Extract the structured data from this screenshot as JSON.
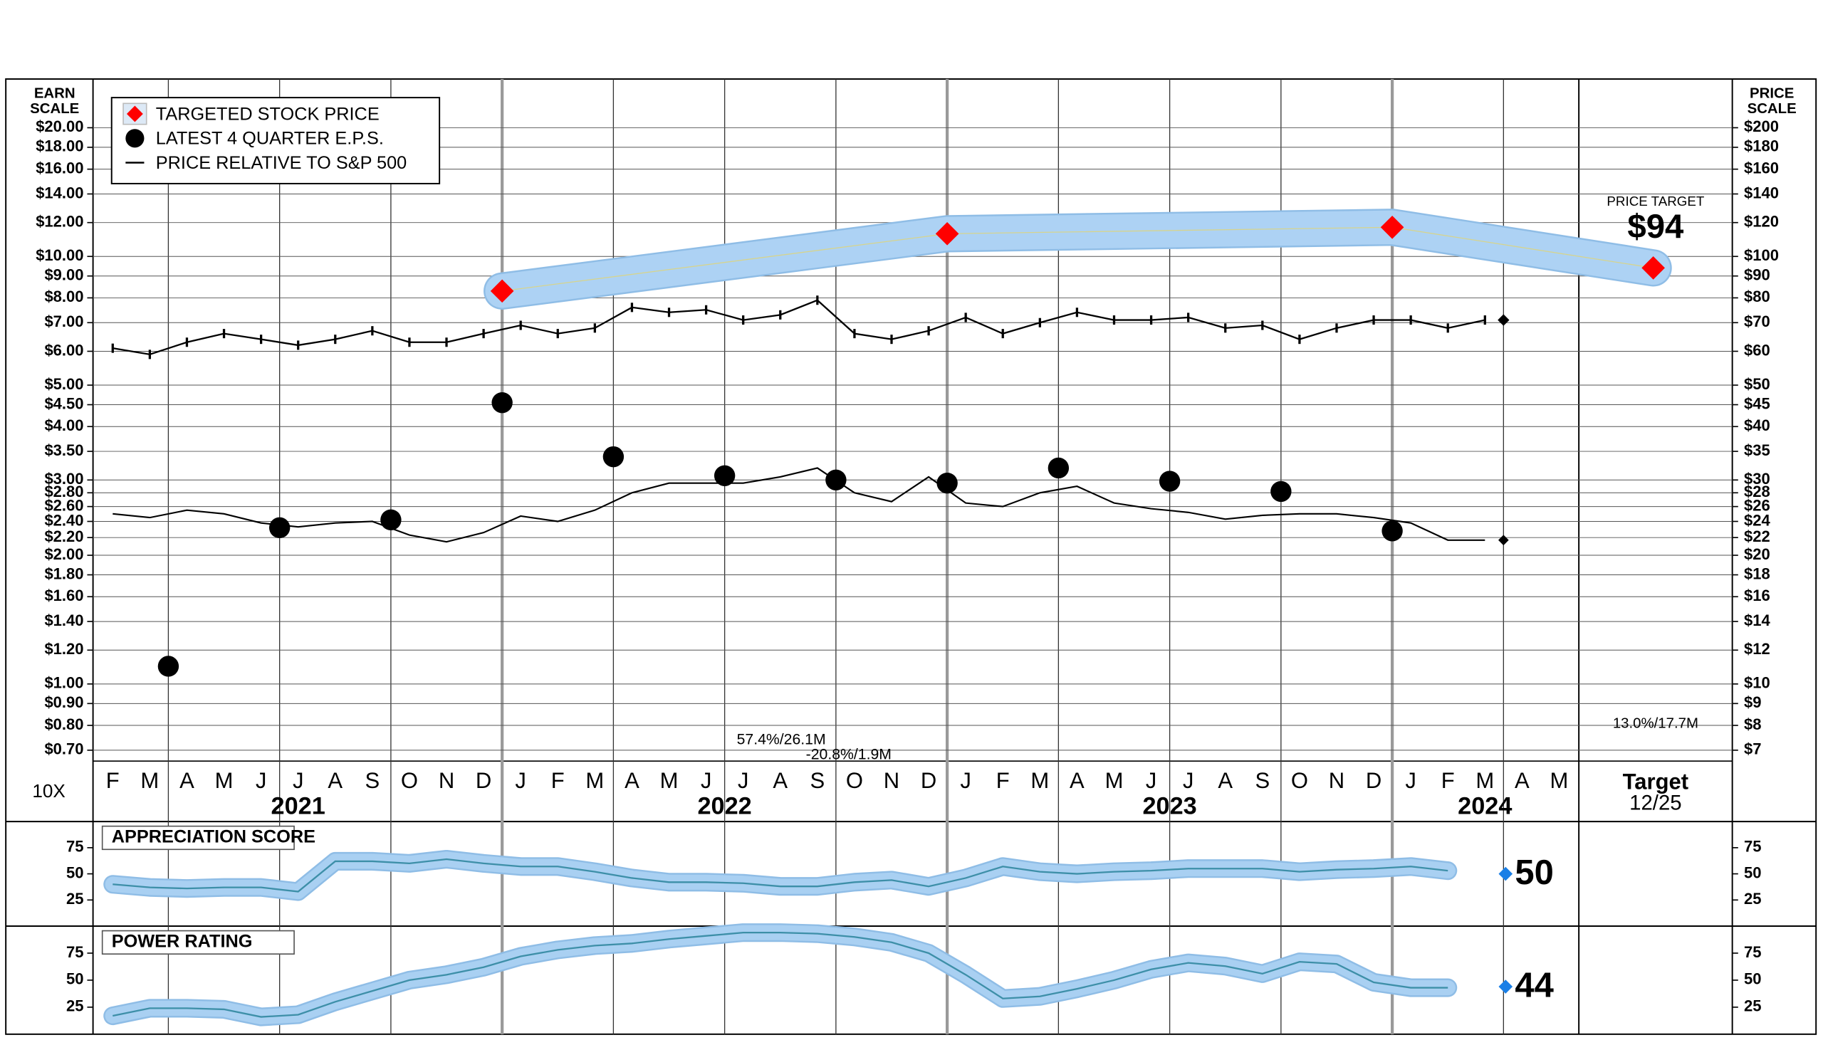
{
  "chart_data": [
    {
      "type": "line",
      "y_label": [
        "EARN",
        "SCALE"
      ],
      "y2_label": [
        "PRICE",
        "SCALE"
      ],
      "log_scale": true,
      "grid": true,
      "legend_position": "upper left",
      "x_note": "10X",
      "categories": [
        "F",
        "M",
        "A",
        "M",
        "J",
        "J",
        "A",
        "S",
        "O",
        "N",
        "D",
        "J",
        "F",
        "M",
        "A",
        "M",
        "J",
        "J",
        "A",
        "S",
        "O",
        "N",
        "D",
        "J",
        "F",
        "M",
        "A",
        "M",
        "J",
        "J",
        "A",
        "S",
        "O",
        "N",
        "D",
        "J",
        "F",
        "M",
        "A",
        "M"
      ],
      "years": [
        "2021",
        "2022",
        "2023",
        "2024"
      ],
      "ylim": [
        0.66,
        26
      ],
      "yticks": [
        {
          "value": 20,
          "label": "$20.00"
        },
        {
          "value": 18,
          "label": "$18.00"
        },
        {
          "value": 16,
          "label": "$16.00"
        },
        {
          "value": 14,
          "label": "$14.00"
        },
        {
          "value": 12,
          "label": "$12.00"
        },
        {
          "value": 10,
          "label": "$10.00"
        },
        {
          "value": 9,
          "label": "$9.00"
        },
        {
          "value": 8,
          "label": "$8.00"
        },
        {
          "value": 7,
          "label": "$7.00"
        },
        {
          "value": 6,
          "label": "$6.00"
        },
        {
          "value": 5,
          "label": "$5.00"
        },
        {
          "value": 4.5,
          "label": "$4.50"
        },
        {
          "value": 4,
          "label": "$4.00"
        },
        {
          "value": 3.5,
          "label": "$3.50"
        },
        {
          "value": 3,
          "label": "$3.00"
        },
        {
          "value": 2.8,
          "label": "$2.80"
        },
        {
          "value": 2.6,
          "label": "$2.60"
        },
        {
          "value": 2.4,
          "label": "$2.40"
        },
        {
          "value": 2.2,
          "label": "$2.20"
        },
        {
          "value": 2,
          "label": "$2.00"
        },
        {
          "value": 1.8,
          "label": "$1.80"
        },
        {
          "value": 1.6,
          "label": "$1.60"
        },
        {
          "value": 1.4,
          "label": "$1.40"
        },
        {
          "value": 1.2,
          "label": "$1.20"
        },
        {
          "value": 1,
          "label": "$1.00"
        },
        {
          "value": 0.9,
          "label": "$0.90"
        },
        {
          "value": 0.8,
          "label": "$0.80"
        },
        {
          "value": 0.7,
          "label": "$0.70"
        }
      ],
      "y2lim": [
        6.6,
        260
      ],
      "y2ticks": [
        {
          "value": 200,
          "label": "$200"
        },
        {
          "value": 180,
          "label": "$180"
        },
        {
          "value": 160,
          "label": "$160"
        },
        {
          "value": 140,
          "label": "$140"
        },
        {
          "value": 120,
          "label": "$120"
        },
        {
          "value": 100,
          "label": "$100"
        },
        {
          "value": 90,
          "label": "$90"
        },
        {
          "value": 80,
          "label": "$80"
        },
        {
          "value": 70,
          "label": "$70"
        },
        {
          "value": 60,
          "label": "$60"
        },
        {
          "value": 50,
          "label": "$50"
        },
        {
          "value": 45,
          "label": "$45"
        },
        {
          "value": 40,
          "label": "$40"
        },
        {
          "value": 35,
          "label": "$35"
        },
        {
          "value": 30,
          "label": "$30"
        },
        {
          "value": 28,
          "label": "$28"
        },
        {
          "value": 26,
          "label": "$26"
        },
        {
          "value": 24,
          "label": "$24"
        },
        {
          "value": 22,
          "label": "$22"
        },
        {
          "value": 20,
          "label": "$20"
        },
        {
          "value": 18,
          "label": "$18"
        },
        {
          "value": 16,
          "label": "$16"
        },
        {
          "value": 14,
          "label": "$14"
        },
        {
          "value": 12,
          "label": "$12"
        },
        {
          "value": 10,
          "label": "$10"
        },
        {
          "value": 9,
          "label": "$9"
        },
        {
          "value": 8,
          "label": "$8"
        },
        {
          "value": 7,
          "label": "$7"
        }
      ],
      "series": [
        {
          "name": "TARGETED STOCK PRICE",
          "marker": "diamond",
          "color": "#ff0000",
          "band_color": "#add2f4",
          "axis": "y2",
          "values": [
            null,
            null,
            null,
            null,
            null,
            null,
            null,
            null,
            null,
            null,
            83,
            null,
            null,
            null,
            null,
            null,
            null,
            null,
            null,
            null,
            null,
            null,
            113,
            null,
            null,
            null,
            null,
            null,
            null,
            null,
            null,
            null,
            null,
            null,
            117,
            null,
            null,
            null,
            null,
            null
          ]
        },
        {
          "name": "LATEST 4 QUARTER E.P.S.",
          "marker": "circle",
          "color": "#000000",
          "values": [
            null,
            1.1,
            null,
            null,
            2.32,
            null,
            null,
            2.42,
            null,
            null,
            4.55,
            null,
            null,
            3.4,
            null,
            null,
            3.07,
            null,
            null,
            3.0,
            null,
            null,
            2.95,
            null,
            null,
            3.2,
            null,
            null,
            2.98,
            null,
            null,
            2.82,
            null,
            null,
            2.28,
            null,
            null,
            null,
            null,
            null
          ]
        },
        {
          "name": "PRICE RELATIVE TO S&P 500",
          "marker": "line",
          "color": "#000000",
          "axis": "y2",
          "values": [
            25,
            24.5,
            25.5,
            25,
            23.8,
            23.3,
            23.8,
            24,
            22.3,
            21.5,
            22.6,
            24.7,
            24,
            25.5,
            28,
            29.5,
            29.5,
            29.5,
            30.5,
            32,
            28,
            26.7,
            30.5,
            26.5,
            26,
            28,
            29,
            26.5,
            25.7,
            25.2,
            24.3,
            24.8,
            25,
            25,
            24.5,
            23.8,
            21.7,
            21.7,
            null,
            null
          ]
        }
      ],
      "price_bars": {
        "color": "#000000",
        "axis": "y2",
        "values": [
          61,
          59,
          63,
          66,
          64,
          62,
          64,
          67,
          63,
          63,
          66,
          69,
          66,
          68,
          76,
          74,
          75,
          71,
          73,
          79,
          66,
          64,
          67,
          72,
          66,
          70,
          74,
          71,
          71,
          72,
          68,
          69,
          64,
          68,
          71,
          71,
          68,
          71,
          null,
          null
        ]
      },
      "annotations": [
        {
          "text": "57.4%/26.1M",
          "color": "#22dd22"
        },
        {
          "text": "-20.8%/1.9M",
          "color": "#ff2222"
        }
      ],
      "price_target": {
        "title": "PRICE TARGET",
        "value": 94,
        "value_label": "$94",
        "color": "#ff0000",
        "label": "Target",
        "date": "12/25",
        "annotation": "13.0%/17.7M",
        "annotation_color": "#22dd22"
      }
    },
    {
      "type": "line",
      "title": "APPRECIATION SCORE",
      "ylim": [
        0,
        100
      ],
      "yticks": [
        25,
        50,
        75
      ],
      "color": "#3d8fa8",
      "band_color": "#a9d0f2",
      "current": 50,
      "current_color": "#1a7fe6",
      "values": [
        40,
        37,
        36,
        37,
        37,
        33,
        62,
        62,
        60,
        64,
        60,
        57,
        57,
        52,
        46,
        42,
        42,
        41,
        38,
        38,
        42,
        44,
        38,
        46,
        57,
        52,
        50,
        52,
        53,
        55,
        55,
        55,
        52,
        54,
        55,
        57,
        53,
        null,
        null,
        null
      ]
    },
    {
      "type": "line",
      "title": "POWER RATING",
      "ylim": [
        0,
        100
      ],
      "yticks": [
        25,
        50,
        75
      ],
      "color": "#3d8fa8",
      "band_color": "#a9d0f2",
      "current": 44,
      "current_color": "#1a7fe6",
      "values": [
        17,
        24,
        24,
        23,
        16,
        18,
        30,
        40,
        50,
        55,
        62,
        72,
        78,
        82,
        84,
        88,
        91,
        94,
        94,
        93,
        90,
        85,
        75,
        55,
        33,
        35,
        42,
        50,
        60,
        66,
        63,
        56,
        67,
        65,
        48,
        43,
        43,
        null,
        null,
        null
      ]
    }
  ]
}
